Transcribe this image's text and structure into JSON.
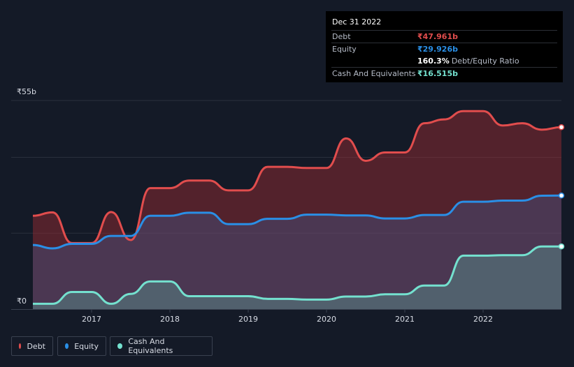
{
  "colors": {
    "debt": "#e14d4d",
    "equity": "#2a8fe6",
    "cash": "#74e1cf",
    "grid": "#2a303d",
    "axis_text": "#d9dde6"
  },
  "tooltip": {
    "date": "Dec 31 2022",
    "debt_label": "Debt",
    "debt_value": "₹47.961b",
    "equity_label": "Equity",
    "equity_value": "₹29.926b",
    "ratio_value": "160.3%",
    "ratio_label": "Debt/Equity Ratio",
    "cash_label": "Cash And Equivalents",
    "cash_value": "₹16.515b"
  },
  "legend": {
    "debt": "Debt",
    "equity": "Equity",
    "cash": "Cash And Equivalents"
  },
  "chart_data": {
    "type": "area",
    "y_max_label": "₹55b",
    "y_min_label": "₹0",
    "ylim": [
      0,
      55
    ],
    "xlim": [
      2016.25,
      2023.0
    ],
    "x_ticks": [
      {
        "label": "2017",
        "x": 2017
      },
      {
        "label": "2018",
        "x": 2018
      },
      {
        "label": "2019",
        "x": 2019
      },
      {
        "label": "2020",
        "x": 2020
      },
      {
        "label": "2021",
        "x": 2021
      },
      {
        "label": "2022",
        "x": 2022
      }
    ],
    "series": [
      {
        "name": "Debt",
        "key": "debt",
        "points": [
          [
            2016.25,
            24.6
          ],
          [
            2016.5,
            25.5
          ],
          [
            2016.75,
            17.4
          ],
          [
            2017.0,
            17.4
          ],
          [
            2017.25,
            25.6
          ],
          [
            2017.5,
            18.2
          ],
          [
            2017.75,
            31.9
          ],
          [
            2018.0,
            31.9
          ],
          [
            2018.25,
            33.9
          ],
          [
            2018.5,
            33.9
          ],
          [
            2018.75,
            31.3
          ],
          [
            2019.0,
            31.3
          ],
          [
            2019.25,
            37.5
          ],
          [
            2019.5,
            37.5
          ],
          [
            2019.75,
            37.2
          ],
          [
            2020.0,
            37.2
          ],
          [
            2020.25,
            45.0
          ],
          [
            2020.5,
            39.1
          ],
          [
            2020.75,
            41.3
          ],
          [
            2021.0,
            41.3
          ],
          [
            2021.25,
            49.0
          ],
          [
            2021.5,
            50.0
          ],
          [
            2021.75,
            52.2
          ],
          [
            2022.0,
            52.2
          ],
          [
            2022.25,
            48.4
          ],
          [
            2022.5,
            49.0
          ],
          [
            2022.75,
            47.3
          ],
          [
            2023.0,
            47.96
          ]
        ]
      },
      {
        "name": "Equity",
        "key": "equity",
        "points": [
          [
            2016.25,
            16.9
          ],
          [
            2016.5,
            16.0
          ],
          [
            2016.75,
            17.2
          ],
          [
            2017.0,
            17.2
          ],
          [
            2017.25,
            19.3
          ],
          [
            2017.5,
            19.3
          ],
          [
            2017.75,
            24.6
          ],
          [
            2018.0,
            24.6
          ],
          [
            2018.25,
            25.4
          ],
          [
            2018.5,
            25.4
          ],
          [
            2018.75,
            22.4
          ],
          [
            2019.0,
            22.4
          ],
          [
            2019.25,
            23.8
          ],
          [
            2019.5,
            23.8
          ],
          [
            2019.75,
            24.9
          ],
          [
            2020.0,
            24.9
          ],
          [
            2020.25,
            24.7
          ],
          [
            2020.5,
            24.7
          ],
          [
            2020.75,
            23.9
          ],
          [
            2021.0,
            23.9
          ],
          [
            2021.25,
            24.8
          ],
          [
            2021.5,
            24.8
          ],
          [
            2021.75,
            28.3
          ],
          [
            2022.0,
            28.3
          ],
          [
            2022.25,
            28.6
          ],
          [
            2022.5,
            28.6
          ],
          [
            2022.75,
            29.9
          ],
          [
            2023.0,
            29.93
          ]
        ]
      },
      {
        "name": "Cash And Equivalents",
        "key": "cash",
        "points": [
          [
            2016.25,
            1.4
          ],
          [
            2016.5,
            1.4
          ],
          [
            2016.75,
            4.5
          ],
          [
            2017.0,
            4.5
          ],
          [
            2017.25,
            1.4
          ],
          [
            2017.5,
            4.0
          ],
          [
            2017.75,
            7.3
          ],
          [
            2018.0,
            7.3
          ],
          [
            2018.25,
            3.4
          ],
          [
            2018.5,
            3.4
          ],
          [
            2018.75,
            3.4
          ],
          [
            2019.0,
            3.4
          ],
          [
            2019.25,
            2.7
          ],
          [
            2019.5,
            2.7
          ],
          [
            2019.75,
            2.5
          ],
          [
            2020.0,
            2.5
          ],
          [
            2020.25,
            3.3
          ],
          [
            2020.5,
            3.3
          ],
          [
            2020.75,
            3.9
          ],
          [
            2021.0,
            3.9
          ],
          [
            2021.25,
            6.2
          ],
          [
            2021.5,
            6.2
          ],
          [
            2021.75,
            14.1
          ],
          [
            2022.0,
            14.1
          ],
          [
            2022.25,
            14.2
          ],
          [
            2022.5,
            14.2
          ],
          [
            2022.75,
            16.5
          ],
          [
            2023.0,
            16.52
          ]
        ]
      }
    ]
  }
}
